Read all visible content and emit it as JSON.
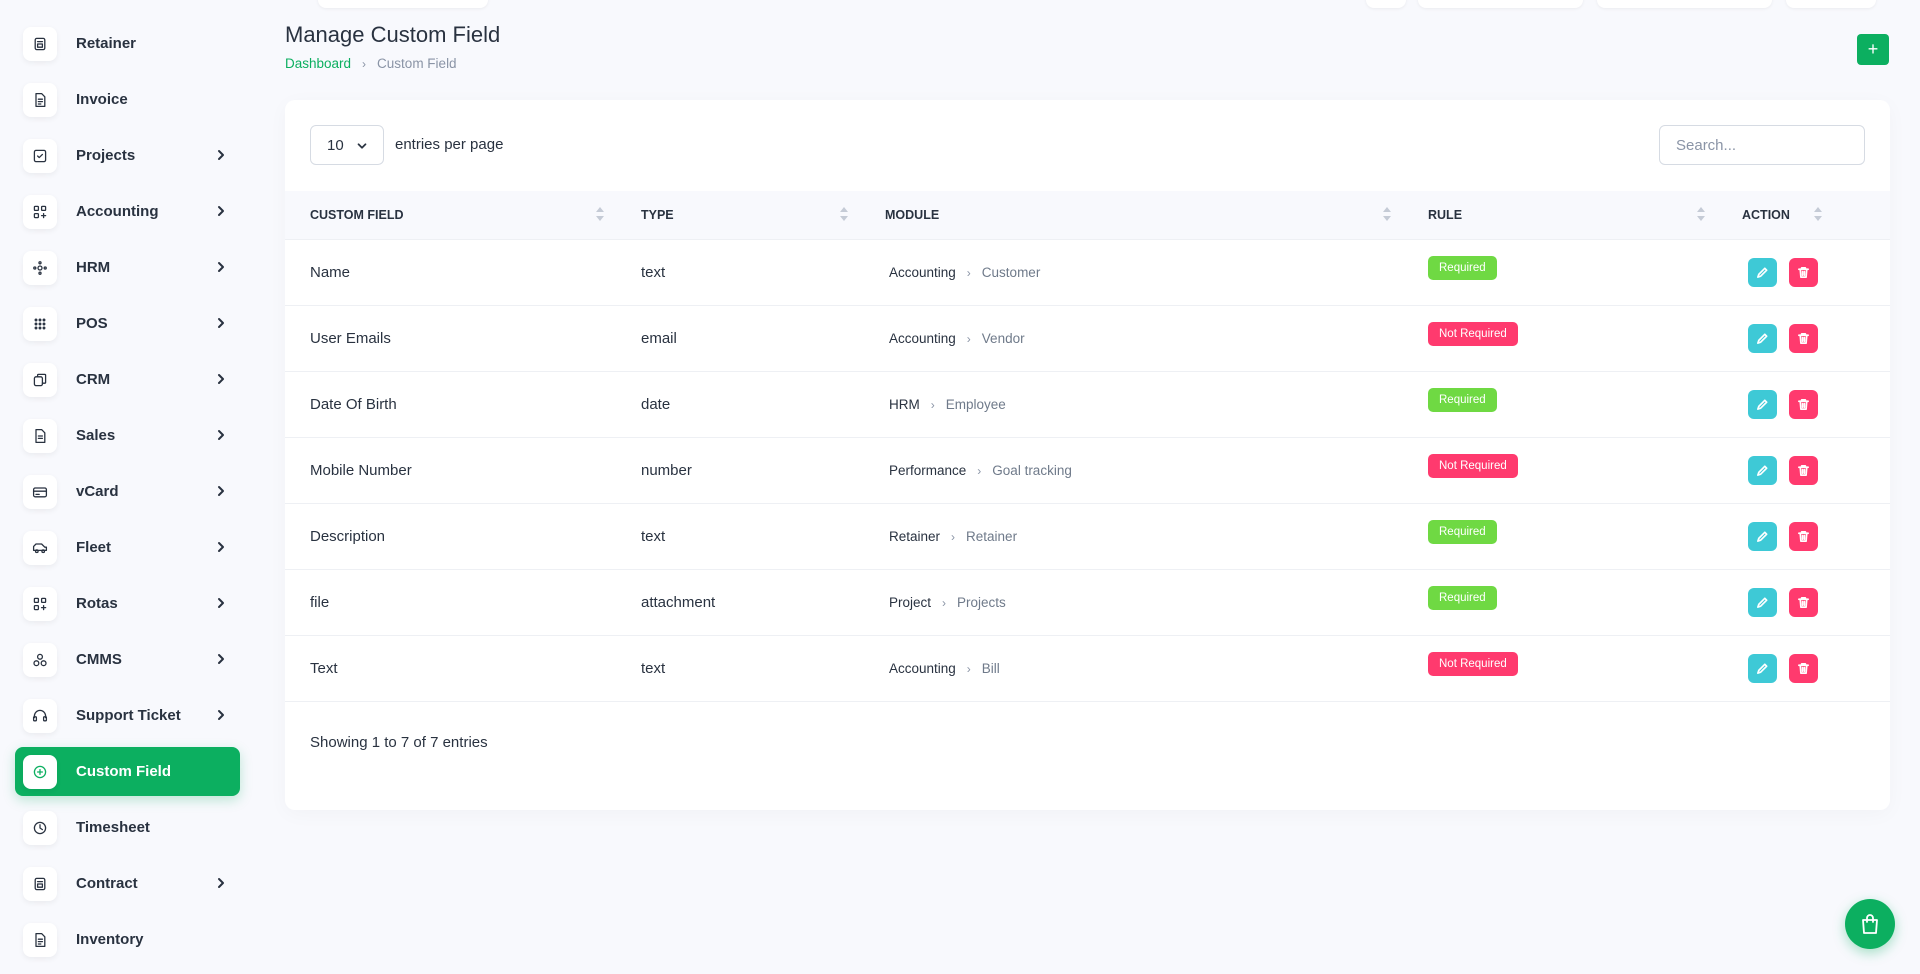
{
  "sidebar": {
    "items": [
      {
        "label": "Retainer",
        "icon": "retainer-icon",
        "has_children": false,
        "active": false
      },
      {
        "label": "Invoice",
        "icon": "invoice-icon",
        "has_children": false,
        "active": false
      },
      {
        "label": "Projects",
        "icon": "projects-icon",
        "has_children": true,
        "active": false
      },
      {
        "label": "Accounting",
        "icon": "accounting-icon",
        "has_children": true,
        "active": false
      },
      {
        "label": "HRM",
        "icon": "hrm-icon",
        "has_children": true,
        "active": false
      },
      {
        "label": "POS",
        "icon": "pos-icon",
        "has_children": true,
        "active": false
      },
      {
        "label": "CRM",
        "icon": "crm-icon",
        "has_children": true,
        "active": false
      },
      {
        "label": "Sales",
        "icon": "sales-icon",
        "has_children": true,
        "active": false
      },
      {
        "label": "vCard",
        "icon": "vcard-icon",
        "has_children": true,
        "active": false
      },
      {
        "label": "Fleet",
        "icon": "fleet-icon",
        "has_children": true,
        "active": false
      },
      {
        "label": "Rotas",
        "icon": "rotas-icon",
        "has_children": true,
        "active": false
      },
      {
        "label": "CMMS",
        "icon": "cmms-icon",
        "has_children": true,
        "active": false
      },
      {
        "label": "Support Ticket",
        "icon": "support-ticket-icon",
        "has_children": true,
        "active": false
      },
      {
        "label": "Custom Field",
        "icon": "custom-field-icon",
        "has_children": false,
        "active": true
      },
      {
        "label": "Timesheet",
        "icon": "timesheet-icon",
        "has_children": false,
        "active": false
      },
      {
        "label": "Contract",
        "icon": "contract-icon",
        "has_children": true,
        "active": false
      },
      {
        "label": "Inventory",
        "icon": "inventory-icon",
        "has_children": false,
        "active": false
      }
    ]
  },
  "header": {
    "title": "Manage Custom Field",
    "breadcrumb": {
      "home": "Dashboard",
      "current": "Custom Field"
    },
    "add_label": "+"
  },
  "table_controls": {
    "entries_value": "10",
    "entries_label": "entries per page",
    "search_placeholder": "Search..."
  },
  "table": {
    "columns": [
      "Custom Field",
      "Type",
      "Module",
      "Rule",
      "Action"
    ],
    "rows": [
      {
        "name": "Name",
        "type": "text",
        "module": "Accounting",
        "submodule": "Customer",
        "rule": "Required"
      },
      {
        "name": "User Emails",
        "type": "email",
        "module": "Accounting",
        "submodule": "Vendor",
        "rule": "Not Required"
      },
      {
        "name": "Date Of Birth",
        "type": "date",
        "module": "HRM",
        "submodule": "Employee",
        "rule": "Required"
      },
      {
        "name": "Mobile Number",
        "type": "number",
        "module": "Performance",
        "submodule": "Goal tracking",
        "rule": "Not Required"
      },
      {
        "name": "Description",
        "type": "text",
        "module": "Retainer",
        "submodule": "Retainer",
        "rule": "Required"
      },
      {
        "name": "file",
        "type": "attachment",
        "module": "Project",
        "submodule": "Projects",
        "rule": "Required"
      },
      {
        "name": "Text",
        "type": "text",
        "module": "Accounting",
        "submodule": "Bill",
        "rule": "Not Required"
      }
    ]
  },
  "footer": {
    "info": "Showing 1 to 7 of 7 entries"
  },
  "colors": {
    "accent": "#0caf60",
    "required": "#6fd943",
    "not_required": "#ff3a6e",
    "edit": "#3ec9d6",
    "delete": "#ff3a6e"
  },
  "fab": {
    "icon": "shopping-bag-icon"
  }
}
